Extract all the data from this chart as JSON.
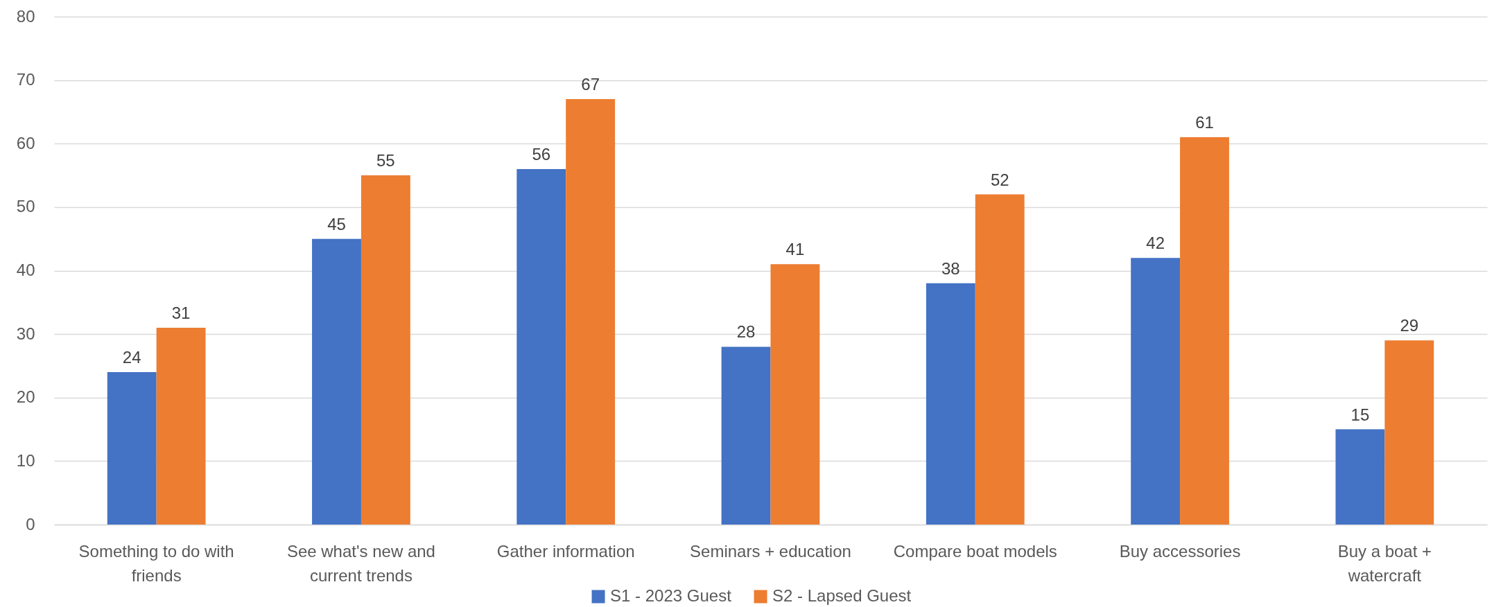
{
  "chart_data": {
    "type": "bar",
    "categories": [
      "Something to do with friends",
      "See what's new and current trends",
      "Gather information",
      "Seminars + education",
      "Compare boat models",
      "Buy accessories",
      "Buy a boat + watercraft"
    ],
    "series": [
      {
        "name": "S1 - 2023 Guest",
        "color": "#4472c4",
        "values": [
          24,
          45,
          56,
          28,
          38,
          42,
          15
        ]
      },
      {
        "name": "S2 - Lapsed Guest",
        "color": "#ed7d31",
        "values": [
          31,
          55,
          67,
          41,
          52,
          61,
          29
        ]
      }
    ],
    "ylim": [
      0,
      80
    ],
    "yticks": [
      0,
      10,
      20,
      30,
      40,
      50,
      60,
      70,
      80
    ],
    "grid": "y",
    "legend": "bottom",
    "data_labels": true
  }
}
